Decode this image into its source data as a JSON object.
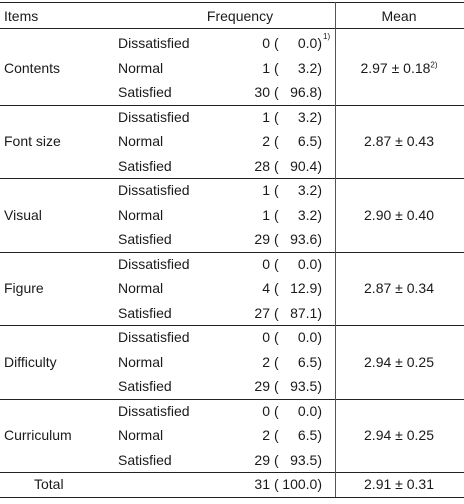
{
  "headers": {
    "items": "Items",
    "frequency": "Frequency",
    "mean": "Mean"
  },
  "groups": [
    {
      "item": "Contents",
      "rows": [
        {
          "level": "Dissatisfied",
          "n": "0",
          "pct": "0.0)",
          "pct_note": "1)"
        },
        {
          "level": "Normal",
          "n": "1",
          "pct": "3.2)"
        },
        {
          "level": "Satisfied",
          "n": "30",
          "pct": "96.8)"
        }
      ],
      "mean": "2.97",
      "pm": "±",
      "sd": "0.18",
      "sd_note": "2)"
    },
    {
      "item": "Font size",
      "rows": [
        {
          "level": "Dissatisfied",
          "n": "1",
          "pct": "3.2)"
        },
        {
          "level": "Normal",
          "n": "2",
          "pct": "6.5)"
        },
        {
          "level": "Satisfied",
          "n": "28",
          "pct": "90.4)"
        }
      ],
      "mean": "2.87",
      "pm": "±",
      "sd": "0.43"
    },
    {
      "item": "Visual",
      "rows": [
        {
          "level": "Dissatisfied",
          "n": "1",
          "pct": "3.2)"
        },
        {
          "level": "Normal",
          "n": "1",
          "pct": "3.2)"
        },
        {
          "level": "Satisfied",
          "n": "29",
          "pct": "93.6)"
        }
      ],
      "mean": "2.90",
      "pm": "±",
      "sd": "0.40"
    },
    {
      "item": "Figure",
      "rows": [
        {
          "level": "Dissatisfied",
          "n": "0",
          "pct": "0.0)"
        },
        {
          "level": "Normal",
          "n": "4",
          "pct": "12.9)"
        },
        {
          "level": "Satisfied",
          "n": "27",
          "pct": "87.1)"
        }
      ],
      "mean": "2.87",
      "pm": "±",
      "sd": "0.34"
    },
    {
      "item": "Difficulty",
      "rows": [
        {
          "level": "Dissatisfied",
          "n": "0",
          "pct": "0.0)"
        },
        {
          "level": "Normal",
          "n": "2",
          "pct": "6.5)"
        },
        {
          "level": "Satisfied",
          "n": "29",
          "pct": "93.5)"
        }
      ],
      "mean": "2.94",
      "pm": "±",
      "sd": "0.25"
    },
    {
      "item": "Curriculum",
      "rows": [
        {
          "level": "Dissatisfied",
          "n": "0",
          "pct": "0.0)"
        },
        {
          "level": "Normal",
          "n": "2",
          "pct": "6.5)"
        },
        {
          "level": "Satisfied",
          "n": "29",
          "pct": "93.5)"
        }
      ],
      "mean": "2.94",
      "pm": "±",
      "sd": "0.25"
    }
  ],
  "total": {
    "label": "Total",
    "n": "31",
    "pct": "100.0)",
    "mean": "2.91",
    "pm": "±",
    "sd": "0.31"
  },
  "paren": "("
}
